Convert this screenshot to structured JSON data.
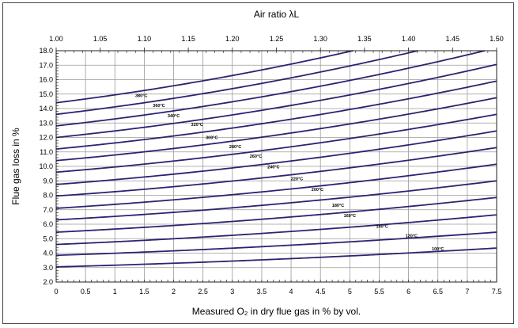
{
  "chart_data": {
    "type": "line",
    "title": "",
    "top_axis": {
      "label": "Air ratio λL",
      "range": [
        1.0,
        1.5
      ],
      "ticks": [
        "1.00",
        "1.05",
        "1.10",
        "1.15",
        "1.20",
        "1.25",
        "1.30",
        "1.35",
        "1.40",
        "1.45",
        "1.50"
      ]
    },
    "xlabel": "Measured O₂ in dry flue gas in % by vol.",
    "ylabel": "Flue gas loss in %",
    "xlim": [
      0,
      7.5
    ],
    "ylim": [
      2.0,
      18.0
    ],
    "xticks": [
      "0",
      "0.5",
      "1",
      "1.5",
      "2",
      "2.5",
      "3",
      "3.5",
      "4",
      "4.5",
      "5",
      "5.5",
      "6",
      "6.5",
      "7",
      "7.5"
    ],
    "yticks": [
      "2.0",
      "3.0",
      "4.0",
      "5.0",
      "6.0",
      "7.0",
      "8.0",
      "9.0",
      "10.0",
      "11.0",
      "12.0",
      "13.0",
      "14.0",
      "15.0",
      "16.0",
      "17.0",
      "18.0"
    ],
    "grid": true,
    "line_color": "#2b2470",
    "series": [
      {
        "name": "100°C",
        "y0": 3.05,
        "y_end": 4.35,
        "label_at": [
          6.5,
          4.2
        ]
      },
      {
        "name": "120°C",
        "y0": 3.85,
        "y_end": 5.45,
        "label_at": [
          6.05,
          5.1
        ]
      },
      {
        "name": "140°C",
        "y0": 4.6,
        "y_end": 6.65,
        "label_at": [
          5.55,
          5.75
        ]
      },
      {
        "name": "160°C",
        "y0": 5.45,
        "y_end": 7.85,
        "label_at": [
          5.0,
          6.5
        ]
      },
      {
        "name": "180°C",
        "y0": 6.3,
        "y_end": 9.0,
        "label_at": [
          4.8,
          7.2
        ]
      },
      {
        "name": "200°C",
        "y0": 7.1,
        "y_end": 10.15,
        "label_at": [
          4.45,
          8.3
        ]
      },
      {
        "name": "220°C",
        "y0": 7.95,
        "y_end": 11.3,
        "label_at": [
          4.1,
          9.05
        ]
      },
      {
        "name": "240°C",
        "y0": 8.75,
        "y_end": 12.45,
        "label_at": [
          3.7,
          9.85
        ]
      },
      {
        "name": "260°C",
        "y0": 9.6,
        "y_end": 13.6,
        "label_at": [
          3.4,
          10.6
        ]
      },
      {
        "name": "280°C",
        "y0": 10.4,
        "y_end": 14.75,
        "label_at": [
          3.05,
          11.25
        ]
      },
      {
        "name": "300°C",
        "y0": 11.2,
        "y_end": 15.9,
        "label_at": [
          2.65,
          11.9
        ]
      },
      {
        "name": "320°C",
        "y0": 12.0,
        "y_end": 17.05,
        "label_at": [
          2.4,
          12.8
        ]
      },
      {
        "name": "340°C",
        "y0": 12.8,
        "y_end": 18.2,
        "label_at": [
          2.0,
          13.4
        ]
      },
      {
        "name": "360°C",
        "y0": 13.6,
        "y_end": 19.35,
        "label_at": [
          1.75,
          14.1
        ]
      },
      {
        "name": "380°C",
        "y0": 14.4,
        "y_end": 20.5,
        "label_at": [
          1.45,
          14.8
        ]
      }
    ]
  }
}
